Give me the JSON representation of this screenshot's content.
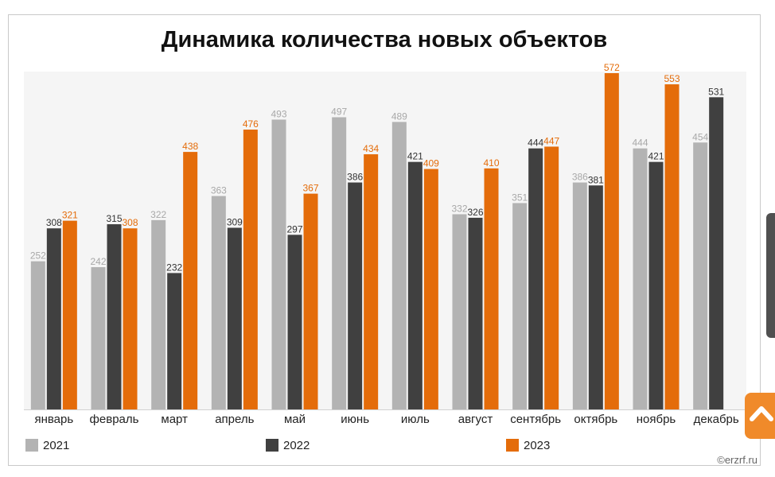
{
  "chart_data": {
    "type": "bar",
    "title": "Динамика количества новых объектов",
    "categories": [
      "январь",
      "февраль",
      "март",
      "апрель",
      "май",
      "июнь",
      "июль",
      "август",
      "сентябрь",
      "октябрь",
      "ноябрь",
      "декабрь"
    ],
    "series": [
      {
        "name": "2021",
        "color": "#b3b3b3",
        "values": [
          252,
          242,
          322,
          363,
          493,
          497,
          489,
          332,
          351,
          386,
          444,
          454
        ]
      },
      {
        "name": "2022",
        "color": "#404040",
        "values": [
          308,
          315,
          232,
          309,
          297,
          386,
          421,
          326,
          444,
          381,
          421,
          531
        ]
      },
      {
        "name": "2023",
        "color": "#e46c0a",
        "values": [
          321,
          308,
          438,
          476,
          367,
          434,
          409,
          410,
          447,
          572,
          553,
          null
        ]
      }
    ],
    "ylim": [
      0,
      600
    ],
    "grid": false,
    "legend_position": "bottom"
  },
  "copyright": "©erzrf.ru",
  "icons": {
    "scroll_top": "chevron-up-icon"
  }
}
